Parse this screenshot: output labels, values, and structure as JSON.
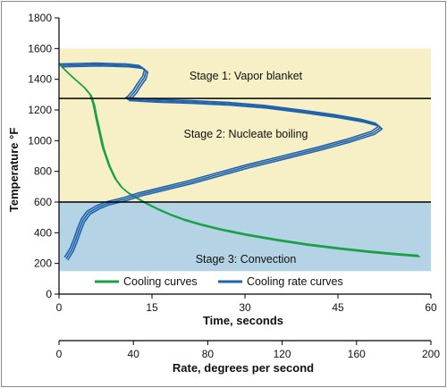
{
  "chart_data": {
    "type": "line",
    "title": "",
    "ylabel": "Temperature °F",
    "xlabel": "Time, seconds",
    "x2label": "Rate, degrees per second",
    "ylim": [
      0,
      1800
    ],
    "yticks": [
      0,
      200,
      400,
      600,
      800,
      1000,
      1200,
      1400,
      1600,
      1800
    ],
    "xlim": [
      0,
      60
    ],
    "xticks": [
      0,
      15,
      30,
      45,
      60
    ],
    "x2lim": [
      0,
      200
    ],
    "x2ticks": [
      0,
      40,
      80,
      120,
      160,
      200
    ],
    "grid": false,
    "legend_placement": "bottom-center",
    "stages": [
      {
        "label": "Stage 1: Vapor blanket",
        "y_from": 1275,
        "y_to": 1600,
        "color": "#f7efc6"
      },
      {
        "label": "Stage 2: Nucleate boiling",
        "y_from": 600,
        "y_to": 1275,
        "color": "#f7efc6"
      },
      {
        "label": "Stage 3: Convection",
        "y_from": 150,
        "y_to": 600,
        "color": "#b4d3e4"
      }
    ],
    "boundaries": [
      1275,
      600
    ],
    "series": [
      {
        "name": "Cooling curves",
        "color": "#1aa04a",
        "x_axis": "time",
        "points": [
          [
            0,
            1500
          ],
          [
            1,
            1460
          ],
          [
            2,
            1420
          ],
          [
            3,
            1385
          ],
          [
            4,
            1350
          ],
          [
            5,
            1300
          ],
          [
            5.5,
            1240
          ],
          [
            6,
            1140
          ],
          [
            7,
            960
          ],
          [
            8,
            840
          ],
          [
            9,
            755
          ],
          [
            10,
            700
          ],
          [
            11,
            665
          ],
          [
            12,
            640
          ],
          [
            14,
            595
          ],
          [
            16,
            555
          ],
          [
            18,
            520
          ],
          [
            20,
            490
          ],
          [
            23,
            455
          ],
          [
            26,
            425
          ],
          [
            30,
            392
          ],
          [
            35,
            357
          ],
          [
            40,
            327
          ],
          [
            45,
            302
          ],
          [
            50,
            280
          ],
          [
            55,
            262
          ],
          [
            58,
            252
          ]
        ]
      },
      {
        "name": "Cooling rate curves",
        "color": "#1f63ad",
        "x_axis": "rate",
        "points": [
          [
            0,
            1500
          ],
          [
            20,
            1505
          ],
          [
            36,
            1500
          ],
          [
            43,
            1490
          ],
          [
            46,
            1465
          ],
          [
            45,
            1420
          ],
          [
            42,
            1370
          ],
          [
            40,
            1330
          ],
          [
            37,
            1290
          ],
          [
            36,
            1280
          ],
          [
            50,
            1270
          ],
          [
            70,
            1262
          ],
          [
            90,
            1250
          ],
          [
            110,
            1230
          ],
          [
            130,
            1200
          ],
          [
            148,
            1170
          ],
          [
            162,
            1140
          ],
          [
            170,
            1115
          ],
          [
            172,
            1095
          ],
          [
            168,
            1060
          ],
          [
            155,
            1010
          ],
          [
            140,
            960
          ],
          [
            120,
            900
          ],
          [
            100,
            840
          ],
          [
            85,
            790
          ],
          [
            70,
            740
          ],
          [
            55,
            695
          ],
          [
            43,
            660
          ],
          [
            35,
            630
          ],
          [
            25,
            600
          ],
          [
            20,
            575
          ],
          [
            15,
            540
          ],
          [
            12,
            490
          ],
          [
            10,
            430
          ],
          [
            8,
            360
          ],
          [
            6,
            300
          ],
          [
            4,
            260
          ],
          [
            3,
            240
          ]
        ]
      }
    ]
  }
}
